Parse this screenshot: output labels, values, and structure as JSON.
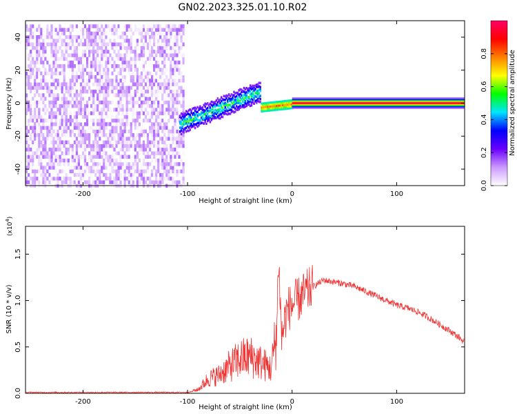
{
  "title": "GN02.2023.325.01.10.R02",
  "colorbar": {
    "label": "Normalized spectral amplitude",
    "ticks": [
      "0.0",
      "0.2",
      "0.4",
      "0.6",
      "0.8"
    ],
    "range": [
      0,
      1
    ],
    "colors": [
      "#ffffff",
      "#cc99ff",
      "#6a00ff",
      "#0000ff",
      "#00e5ff",
      "#00ff00",
      "#ffff00",
      "#ff8000",
      "#ff0000",
      "#ff0066"
    ]
  },
  "chart_data": [
    {
      "type": "heatmap",
      "xlabel": "Height of straight line (km)",
      "ylabel": "Frequency (Hz)",
      "xlim": [
        -255,
        165
      ],
      "ylim": [
        -50,
        50
      ],
      "xticks": [
        -200,
        -100,
        0,
        100
      ],
      "yticks": [
        -40,
        -20,
        0,
        20,
        40
      ],
      "regions": [
        {
          "x_range": [
            -255,
            -103
          ],
          "description_level": "noise",
          "amplitude_range": [
            0.0,
            0.15
          ]
        },
        {
          "x_range": [
            -108,
            -30
          ],
          "freq_trend": [
            -12,
            8
          ],
          "amplitude_range": [
            0.15,
            0.6
          ]
        },
        {
          "x_range": [
            -30,
            0
          ],
          "freq_trend": [
            -2,
            0
          ],
          "amplitude_range": [
            0.4,
            0.85
          ]
        },
        {
          "x_range": [
            0,
            165
          ],
          "freq": 0,
          "amplitude_range": [
            0.8,
            1.0
          ]
        }
      ]
    },
    {
      "type": "line",
      "xlabel": "Height of straight line (km)",
      "ylabel": "SNR (10 * v/v)",
      "ylabel_exponent": "(x10",
      "ylabel_exponent_power": "4",
      "ylabel_exponent_close": ")",
      "xlim": [
        -255,
        165
      ],
      "ylim": [
        0,
        1.8
      ],
      "xticks": [
        -200,
        -100,
        0,
        100
      ],
      "yticks": [
        "0.0",
        "0.5",
        "1.0",
        "1.5"
      ],
      "series": [
        {
          "color": "#ee3333",
          "x": [
            -255,
            -200,
            -150,
            -100,
            -90,
            -80,
            -70,
            -60,
            -50,
            -40,
            -30,
            -20,
            -15,
            -13,
            -10,
            -5,
            0,
            10,
            20,
            30,
            40,
            50,
            60,
            70,
            80,
            90,
            100,
            110,
            120,
            130,
            140,
            150,
            160,
            165
          ],
          "y": [
            0.01,
            0.01,
            0.01,
            0.01,
            0.03,
            0.12,
            0.15,
            0.22,
            0.28,
            0.3,
            0.25,
            0.2,
            0.5,
            1.5,
            0.6,
            0.9,
            0.95,
            1.05,
            1.15,
            1.22,
            1.2,
            1.18,
            1.15,
            1.1,
            1.05,
            1.0,
            0.95,
            0.92,
            0.88,
            0.82,
            0.75,
            0.68,
            0.6,
            0.55
          ]
        }
      ]
    }
  ]
}
